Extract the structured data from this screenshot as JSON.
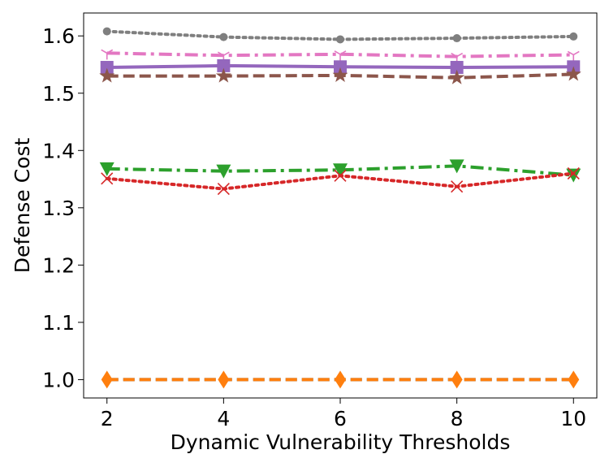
{
  "chart_data": {
    "type": "line",
    "xlabel": "Dynamic Vulnerability Thresholds",
    "ylabel": "Defense Cost",
    "x": [
      2,
      4,
      6,
      8,
      10
    ],
    "xticks": [
      "2",
      "4",
      "6",
      "8",
      "10"
    ],
    "ylim": [
      0.968,
      1.64
    ],
    "yticks": [
      "1.0",
      "1.1",
      "1.2",
      "1.3",
      "1.4",
      "1.5",
      "1.6"
    ],
    "xlim": [
      1.6,
      10.4
    ],
    "grid": false,
    "series": [
      {
        "color": "#7f7f7f",
        "dash": "dotted",
        "marker": "circle",
        "values": [
          1.608,
          1.598,
          1.594,
          1.596,
          1.599
        ]
      },
      {
        "color": "#e377c2",
        "dash": "dashdot",
        "marker": "tri-down",
        "values": [
          1.57,
          1.566,
          1.568,
          1.564,
          1.567
        ]
      },
      {
        "color": "#9467bd",
        "dash": "solid",
        "marker": "square",
        "values": [
          1.545,
          1.548,
          1.546,
          1.545,
          1.546
        ]
      },
      {
        "color": "#8c564b",
        "dash": "dashed",
        "marker": "star",
        "values": [
          1.53,
          1.53,
          1.531,
          1.527,
          1.533
        ]
      },
      {
        "color": "#2ca02c",
        "dash": "dashdot",
        "marker": "triangle-down",
        "values": [
          1.368,
          1.364,
          1.366,
          1.373,
          1.357
        ]
      },
      {
        "color": "#d62728",
        "dash": "dotted",
        "marker": "x",
        "values": [
          1.351,
          1.333,
          1.356,
          1.337,
          1.36
        ]
      },
      {
        "color": "#1f77b4",
        "dash": "dashed",
        "marker": "none",
        "values": [
          1.0,
          1.0,
          1.0,
          1.0,
          1.0
        ]
      },
      {
        "color": "#ff7f0e",
        "dash": "dashed",
        "marker": "diamond",
        "values": [
          1.0,
          1.0,
          1.0,
          1.0,
          1.0
        ]
      }
    ]
  }
}
